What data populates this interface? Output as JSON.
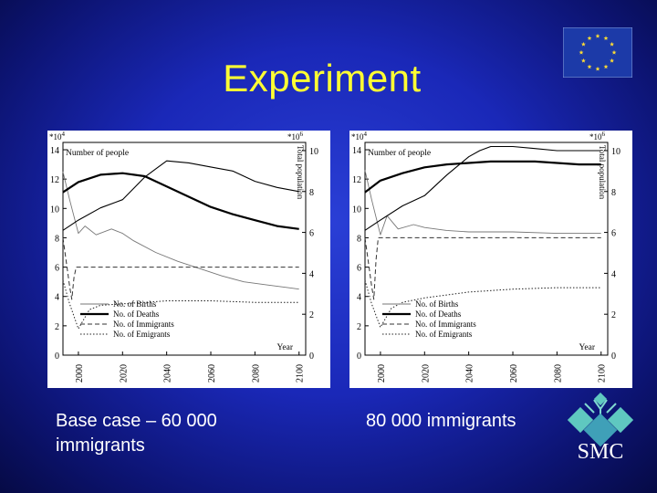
{
  "slide": {
    "title": "Experiment",
    "caption_left": "Base case – 60 000 immigrants",
    "caption_right": "80 000 immigrants",
    "logo_text": "SMC",
    "accent_color": "#ffff33",
    "background_color": "#1a28b8"
  },
  "chart_data": [
    {
      "type": "line",
      "ylabel_left": "Number of people",
      "ylabel_right": "Total population",
      "left_scale_label": "*10^4",
      "right_scale_label": "*10^6",
      "xlabel": "Year",
      "xlim": [
        1993,
        2103
      ],
      "ylim_left": [
        0,
        14.5
      ],
      "ylim_right": [
        0,
        10.4
      ],
      "x_ticks": [
        2000,
        2020,
        2040,
        2060,
        2080,
        2100
      ],
      "y_ticks_left": [
        0,
        2,
        4,
        6,
        8,
        10,
        12,
        14
      ],
      "y_ticks_right": [
        0,
        2,
        4,
        6,
        8,
        10
      ],
      "legend": [
        "No. of Births",
        "No. of Deaths",
        "No. of Immigrants",
        "No. of Emigrants"
      ],
      "series": [
        {
          "name": "No. of Births",
          "axis": "left",
          "x": [
            1993,
            1996,
            2000,
            2003,
            2008,
            2015,
            2020,
            2025,
            2035,
            2045,
            2055,
            2065,
            2075,
            2085,
            2095,
            2100
          ],
          "values": [
            12.5,
            10.6,
            8.3,
            8.8,
            8.2,
            8.6,
            8.3,
            7.8,
            7.0,
            6.4,
            5.9,
            5.4,
            5.0,
            4.8,
            4.6,
            4.5
          ]
        },
        {
          "name": "No. of Deaths",
          "axis": "left",
          "x": [
            1993,
            2000,
            2010,
            2020,
            2030,
            2040,
            2050,
            2060,
            2070,
            2080,
            2090,
            2100
          ],
          "values": [
            11.1,
            11.8,
            12.3,
            12.4,
            12.2,
            11.5,
            10.8,
            10.1,
            9.6,
            9.2,
            8.8,
            8.6
          ]
        },
        {
          "name": "No. of Immigrants",
          "axis": "left",
          "x": [
            1993,
            1996,
            1997,
            1998,
            1999,
            2000,
            2100
          ],
          "values": [
            8.0,
            4.7,
            3.8,
            5.3,
            6.0,
            6.0,
            6.0
          ]
        },
        {
          "name": "No. of Emigrants",
          "axis": "left",
          "x": [
            1993,
            1996,
            2000,
            2005,
            2010,
            2020,
            2030,
            2040,
            2060,
            2080,
            2100
          ],
          "values": [
            5.1,
            3.5,
            1.8,
            3.1,
            3.4,
            3.5,
            3.6,
            3.7,
            3.7,
            3.6,
            3.6
          ]
        },
        {
          "name": "Total population",
          "axis": "right",
          "x": [
            1993,
            2000,
            2010,
            2020,
            2030,
            2035,
            2040,
            2050,
            2060,
            2070,
            2080,
            2090,
            2100
          ],
          "values": [
            6.1,
            6.6,
            7.2,
            7.6,
            8.7,
            9.1,
            9.5,
            9.4,
            9.2,
            9.0,
            8.5,
            8.2,
            8.0
          ]
        }
      ]
    },
    {
      "type": "line",
      "ylabel_left": "Number of people",
      "ylabel_right": "Total population",
      "left_scale_label": "*10^4",
      "right_scale_label": "*10^6",
      "xlabel": "Year",
      "xlim": [
        1993,
        2103
      ],
      "ylim_left": [
        0,
        14.5
      ],
      "ylim_right": [
        0,
        10.4
      ],
      "x_ticks": [
        2000,
        2020,
        2040,
        2060,
        2080,
        2100
      ],
      "y_ticks_left": [
        0,
        2,
        4,
        6,
        8,
        10,
        12,
        14
      ],
      "y_ticks_right": [
        0,
        2,
        4,
        6,
        8,
        10
      ],
      "legend": [
        "No. of Births",
        "No. of Deaths",
        "No. of Immigrants",
        "No. of Emigrants"
      ],
      "series": [
        {
          "name": "No. of Births",
          "axis": "left",
          "x": [
            1993,
            1996,
            2000,
            2003,
            2008,
            2015,
            2020,
            2030,
            2040,
            2060,
            2080,
            2100
          ],
          "values": [
            12.6,
            10.6,
            8.2,
            9.5,
            8.6,
            8.9,
            8.7,
            8.5,
            8.4,
            8.4,
            8.3,
            8.3
          ]
        },
        {
          "name": "No. of Deaths",
          "axis": "left",
          "x": [
            1993,
            2000,
            2010,
            2020,
            2030,
            2040,
            2050,
            2060,
            2070,
            2080,
            2090,
            2100
          ],
          "values": [
            11.1,
            11.9,
            12.4,
            12.8,
            13.0,
            13.1,
            13.2,
            13.2,
            13.2,
            13.1,
            13.0,
            13.0
          ]
        },
        {
          "name": "No. of Immigrants",
          "axis": "left",
          "x": [
            1993,
            1996,
            1997,
            1998,
            1999,
            2000,
            2100
          ],
          "values": [
            8.0,
            4.7,
            3.8,
            6.5,
            8.0,
            8.0,
            8.0
          ]
        },
        {
          "name": "No. of Emigrants",
          "axis": "left",
          "x": [
            1993,
            1996,
            2000,
            2005,
            2010,
            2020,
            2030,
            2040,
            2060,
            2080,
            2100
          ],
          "values": [
            5.1,
            3.5,
            1.9,
            3.2,
            3.6,
            3.9,
            4.1,
            4.3,
            4.5,
            4.6,
            4.6
          ]
        },
        {
          "name": "Total population",
          "axis": "right",
          "x": [
            1993,
            2000,
            2010,
            2020,
            2030,
            2040,
            2045,
            2050,
            2060,
            2070,
            2080,
            2090,
            2100
          ],
          "values": [
            6.1,
            6.6,
            7.3,
            7.8,
            8.8,
            9.7,
            10.0,
            10.2,
            10.2,
            10.1,
            10.0,
            10.0,
            10.0
          ]
        }
      ]
    }
  ]
}
